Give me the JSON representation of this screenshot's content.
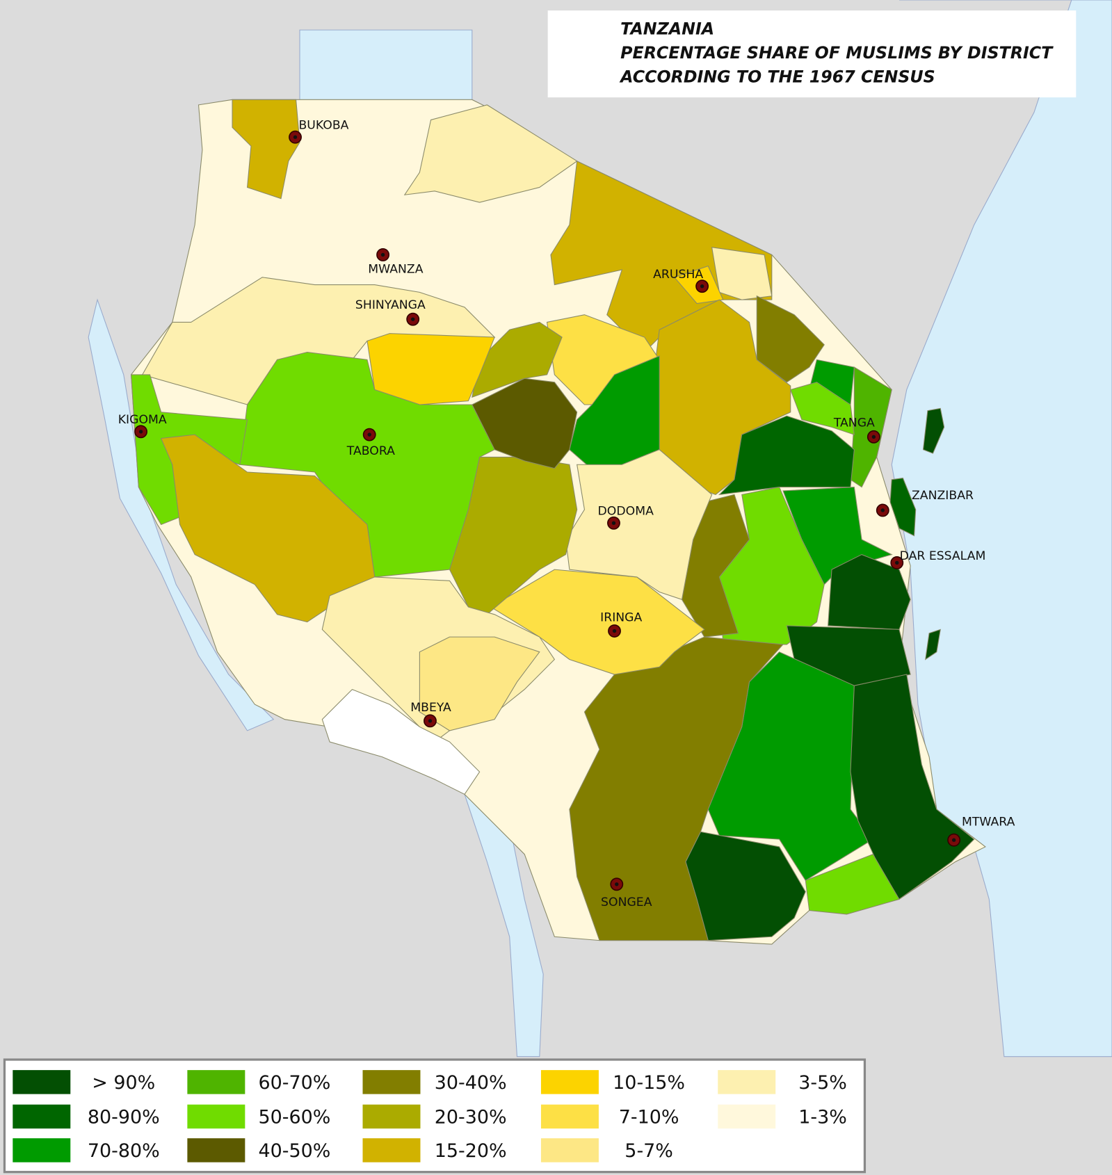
{
  "title": {
    "lines": [
      "TANZANIA",
      "PERCENTAGE SHARE OF MUSLIMS BY DISTRICT",
      "ACCORDING TO THE 1967 CENSUS"
    ]
  },
  "cities": [
    {
      "label": "BUKOBA"
    },
    {
      "label": "MWANZA"
    },
    {
      "label": "ARUSHA"
    },
    {
      "label": "SHINYANGA"
    },
    {
      "label": "KIGOMA"
    },
    {
      "label": "TABORA"
    },
    {
      "label": "TANGA"
    },
    {
      "label": "ZANZIBAR"
    },
    {
      "label": "DODOMA"
    },
    {
      "label": "DAR ESSALAM"
    },
    {
      "label": "IRINGA"
    },
    {
      "label": "MBEYA"
    },
    {
      "label": "MTWARA"
    },
    {
      "label": "SONGEA"
    }
  ],
  "legend": [
    {
      "label": "> 90%",
      "color": "#034f03"
    },
    {
      "label": "80-90%",
      "color": "#006600"
    },
    {
      "label": "70-80%",
      "color": "#009b00"
    },
    {
      "label": "60-70%",
      "color": "#4fb400"
    },
    {
      "label": "50-60%",
      "color": "#70dc00"
    },
    {
      "label": "40-50%",
      "color": "#5c5a00"
    },
    {
      "label": "30-40%",
      "color": "#827e00"
    },
    {
      "label": "20-30%",
      "color": "#abab00"
    },
    {
      "label": "15-20%",
      "color": "#d1b200"
    },
    {
      "label": "10-15%",
      "color": "#fcd300"
    },
    {
      "label": "7-10%",
      "color": "#fde045"
    },
    {
      "label": "5-7%",
      "color": "#fde785"
    },
    {
      "label": "3-5%",
      "color": "#fdf0b0"
    },
    {
      "label": "1-3%",
      "color": "#fff8dc"
    }
  ]
}
